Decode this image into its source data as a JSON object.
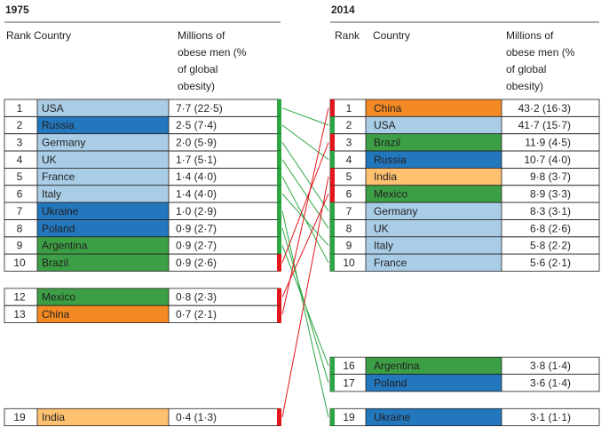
{
  "panels": [
    {
      "year": "1975",
      "headers": {
        "rank": "Rank",
        "country": "Country",
        "value": "Millions of obese men (% of global obesity)"
      },
      "rows": [
        {
          "rank": 1,
          "country": "USA",
          "value": "7·7 (22·5)",
          "color": "#a9cde6"
        },
        {
          "rank": 2,
          "country": "Russia",
          "value": "2·5 (7·4)",
          "color": "#2377bd"
        },
        {
          "rank": 3,
          "country": "Germany",
          "value": "2·0 (5·9)",
          "color": "#a9cde6"
        },
        {
          "rank": 4,
          "country": "UK",
          "value": "1·7 (5·1)",
          "color": "#a9cde6"
        },
        {
          "rank": 5,
          "country": "France",
          "value": "1·4 (4·0)",
          "color": "#a9cde6"
        },
        {
          "rank": 6,
          "country": "Italy",
          "value": "1·4 (4·0)",
          "color": "#a9cde6"
        },
        {
          "rank": 7,
          "country": "Ukraine",
          "value": "1·0 (2·9)",
          "color": "#2377bd"
        },
        {
          "rank": 8,
          "country": "Poland",
          "value": "0·9 (2·7)",
          "color": "#2377bd"
        },
        {
          "rank": 9,
          "country": "Argentina",
          "value": "0·9 (2·7)",
          "color": "#3c9f45"
        },
        {
          "rank": 10,
          "country": "Brazil",
          "value": "0·9 (2·6)",
          "color": "#3c9f45"
        },
        {
          "rank": 12,
          "country": "Mexico",
          "value": "0·8 (2·3)",
          "color": "#3c9f45"
        },
        {
          "rank": 13,
          "country": "China",
          "value": "0·7 (2·1)",
          "color": "#f38a24"
        },
        {
          "rank": 19,
          "country": "India",
          "value": "0·4 (1·3)",
          "color": "#fdc170"
        }
      ]
    },
    {
      "year": "2014",
      "headers": {
        "rank": "Rank",
        "country": "Country",
        "value": "Millions of obese men (% of global obesity)"
      },
      "rows": [
        {
          "rank": 1,
          "country": "China",
          "value": "43·2 (16·3)",
          "color": "#f38a24"
        },
        {
          "rank": 2,
          "country": "USA",
          "value": "41·7 (15·7)",
          "color": "#a9cde6"
        },
        {
          "rank": 3,
          "country": "Brazil",
          "value": "11·9 (4·5)",
          "color": "#3c9f45"
        },
        {
          "rank": 4,
          "country": "Russia",
          "value": "10·7 (4·0)",
          "color": "#2377bd"
        },
        {
          "rank": 5,
          "country": "India",
          "value": "9·8 (3·7)",
          "color": "#fdc170"
        },
        {
          "rank": 6,
          "country": "Mexico",
          "value": "8·9 (3·3)",
          "color": "#3c9f45"
        },
        {
          "rank": 7,
          "country": "Germany",
          "value": "8·3 (3·1)",
          "color": "#a9cde6"
        },
        {
          "rank": 8,
          "country": "UK",
          "value": "6·8 (2·6)",
          "color": "#a9cde6"
        },
        {
          "rank": 9,
          "country": "Italy",
          "value": "5·8 (2·2)",
          "color": "#a9cde6"
        },
        {
          "rank": 10,
          "country": "France",
          "value": "5·6 (2·1)",
          "color": "#a9cde6"
        },
        {
          "rank": 16,
          "country": "Argentina",
          "value": "3·8 (1·4)",
          "color": "#3c9f45"
        },
        {
          "rank": 17,
          "country": "Poland",
          "value": "3·6 (1·4)",
          "color": "#2377bd"
        },
        {
          "rank": 19,
          "country": "Ukraine",
          "value": "3·1 (1·1)",
          "color": "#2377bd"
        }
      ]
    }
  ],
  "link_colors": {
    "up": "#e3161b",
    "down": "#2ca642"
  }
}
